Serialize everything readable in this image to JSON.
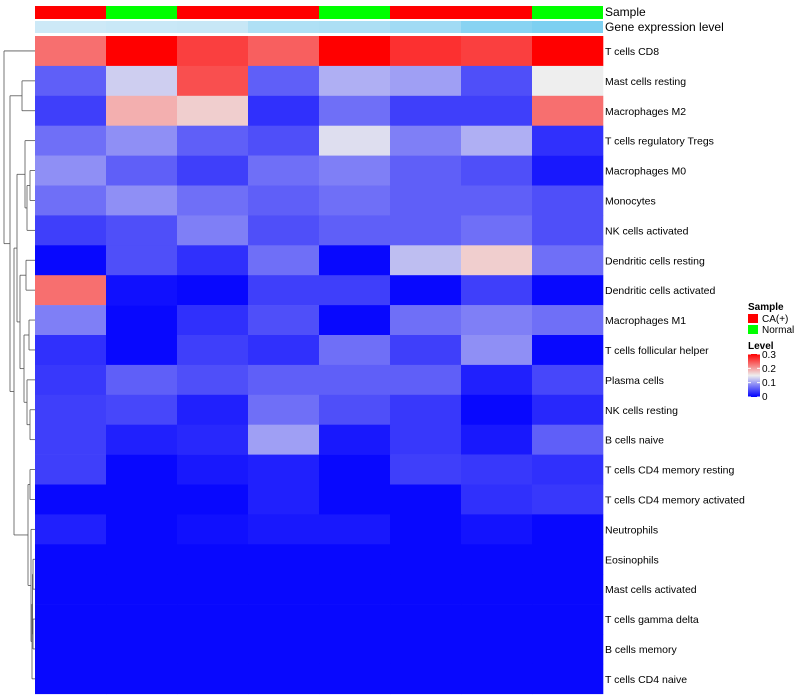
{
  "chart_data": {
    "type": "heatmap",
    "annotation_labels": {
      "sample": "Sample",
      "gene": "Gene expression level"
    },
    "sample_groups": [
      "CA(+)",
      "Normal",
      "CA(+)",
      "CA(+)",
      "Normal",
      "CA(+)",
      "CA(+)",
      "Normal"
    ],
    "gene_expression_level": [
      0.15,
      0.18,
      0.2,
      0.42,
      0.45,
      0.55,
      0.78,
      0.88
    ],
    "rows": [
      "T cells CD8",
      "Mast cells resting",
      "Macrophages M2",
      "T cells regulatory  Tregs",
      "Macrophages M0",
      "Monocytes",
      "NK cells activated",
      "Dendritic cells resting",
      "Dendritic cells activated",
      "Macrophages M1",
      "T cells follicular helper",
      "Plasma cells",
      "NK cells resting",
      "B cells naive",
      "T cells CD4 memory resting",
      "T cells CD4 memory activated",
      "Neutrophils",
      "Eosinophils",
      "Mast cells activated",
      "T cells gamma delta",
      "B cells memory",
      "T cells CD4 naive"
    ],
    "values": [
      [
        0.23,
        0.3,
        0.26,
        0.24,
        0.3,
        0.27,
        0.26,
        0.3
      ],
      [
        0.06,
        0.13,
        0.25,
        0.06,
        0.11,
        0.1,
        0.05,
        0.15
      ],
      [
        0.04,
        0.19,
        0.17,
        0.03,
        0.07,
        0.04,
        0.04,
        0.23
      ],
      [
        0.07,
        0.09,
        0.06,
        0.05,
        0.14,
        0.08,
        0.11,
        0.03
      ],
      [
        0.09,
        0.06,
        0.04,
        0.07,
        0.08,
        0.06,
        0.05,
        0.015
      ],
      [
        0.07,
        0.09,
        0.07,
        0.06,
        0.07,
        0.06,
        0.06,
        0.05
      ],
      [
        0.04,
        0.05,
        0.08,
        0.05,
        0.06,
        0.06,
        0.07,
        0.05
      ],
      [
        0.005,
        0.05,
        0.03,
        0.07,
        0.005,
        0.12,
        0.17,
        0.07
      ],
      [
        0.23,
        0.01,
        0.005,
        0.04,
        0.04,
        0.005,
        0.04,
        0.005
      ],
      [
        0.08,
        0.005,
        0.03,
        0.05,
        0.005,
        0.07,
        0.08,
        0.07
      ],
      [
        0.03,
        0.005,
        0.04,
        0.03,
        0.07,
        0.04,
        0.09,
        0.005
      ],
      [
        0.035,
        0.06,
        0.05,
        0.06,
        0.06,
        0.06,
        0.02,
        0.045
      ],
      [
        0.04,
        0.045,
        0.02,
        0.07,
        0.05,
        0.035,
        0.005,
        0.025
      ],
      [
        0.04,
        0.02,
        0.025,
        0.1,
        0.015,
        0.035,
        0.015,
        0.06
      ],
      [
        0.04,
        0.005,
        0.015,
        0.02,
        0.005,
        0.04,
        0.035,
        0.03
      ],
      [
        0.005,
        0.005,
        0.005,
        0.02,
        0.005,
        0.005,
        0.03,
        0.035
      ],
      [
        0.02,
        0.005,
        0.01,
        0.015,
        0.015,
        0.005,
        0.012,
        0.005
      ],
      [
        0.005,
        0.005,
        0.005,
        0.005,
        0.005,
        0.005,
        0.005,
        0.005
      ],
      [
        0.005,
        0.005,
        0.005,
        0.005,
        0.005,
        0.005,
        0.005,
        0.005
      ],
      [
        0.005,
        0.005,
        0.005,
        0.005,
        0.005,
        0.005,
        0.005,
        0.005
      ],
      [
        0.005,
        0.005,
        0.005,
        0.005,
        0.005,
        0.005,
        0.005,
        0.005
      ],
      [
        0.005,
        0.005,
        0.005,
        0.005,
        0.005,
        0.005,
        0.005,
        0.005
      ]
    ],
    "color_scale": {
      "min": 0,
      "mid": 0.15,
      "max": 0.3,
      "low_color": "#0000ff",
      "mid_color": "#eeeeee",
      "high_color": "#ff0000"
    },
    "legend": {
      "sample_title": "Sample",
      "sample_entries": [
        {
          "label": "CA(+)",
          "color": "#ff0000"
        },
        {
          "label": "Normal",
          "color": "#00ff00"
        }
      ],
      "level_title": "Level",
      "level_ticks": [
        "0.3",
        "0.2",
        "0.1",
        "0"
      ],
      "level_tick_values": [
        0.3,
        0.2,
        0.1,
        0
      ],
      "placement": "right"
    }
  }
}
